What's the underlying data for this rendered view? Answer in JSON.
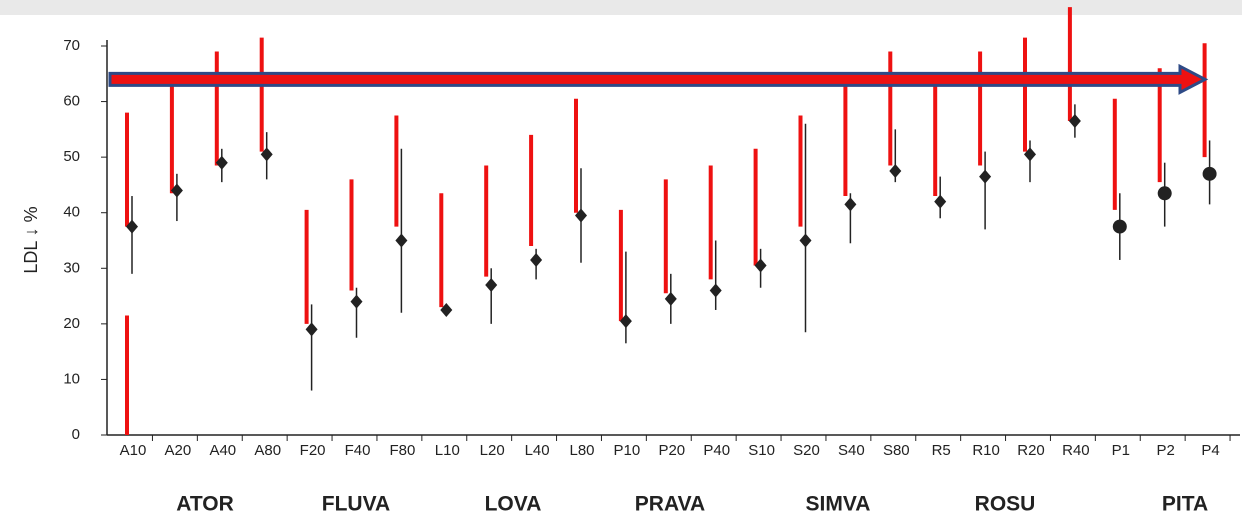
{
  "chart_data": {
    "type": "range",
    "y_label": "LDL ↓ %",
    "categories": [
      "A10",
      "A20",
      "A40",
      "A80",
      "F20",
      "F40",
      "F80",
      "L10",
      "L20",
      "L40",
      "L80",
      "P10",
      "P20",
      "P40",
      "S10",
      "S20",
      "S40",
      "S80",
      "R5",
      "R10",
      "R20",
      "R40",
      "P1",
      "P2",
      "P4"
    ],
    "values": [
      37.5,
      44,
      49,
      50.5,
      19,
      24,
      35,
      22.5,
      27,
      31.5,
      39.5,
      20.5,
      24.5,
      26,
      30.5,
      35,
      41.5,
      47.5,
      42,
      46.5,
      50.5,
      56.5,
      37.5,
      43.5,
      47
    ],
    "low": [
      29,
      38.5,
      45.5,
      46,
      8,
      17.5,
      22,
      22,
      20,
      28,
      31,
      16.5,
      20,
      22.5,
      26.5,
      18.5,
      34.5,
      45.5,
      39,
      37,
      45.5,
      53.5,
      31.5,
      37.5,
      41.5
    ],
    "high": [
      43,
      47,
      51.5,
      54.5,
      23.5,
      26.5,
      51.5,
      23.5,
      30,
      33.5,
      48,
      33,
      29,
      35,
      33.5,
      56,
      43.5,
      55,
      46.5,
      51,
      53,
      59.5,
      43.5,
      49,
      53
    ],
    "markers": [
      "diamond",
      "diamond",
      "diamond",
      "diamond",
      "diamond",
      "diamond",
      "diamond",
      "diamond",
      "diamond",
      "diamond",
      "diamond",
      "diamond",
      "diamond",
      "diamond",
      "diamond",
      "diamond",
      "diamond",
      "diamond",
      "diamond",
      "diamond",
      "diamond",
      "diamond",
      "circle",
      "circle",
      "circle"
    ],
    "color": "#222222",
    "red_color": "#ee1111",
    "red_ranges": [
      [
        [
          0,
          21.5
        ],
        [
          37.5,
          58
        ]
      ],
      [
        [
          43.5,
          63.5
        ]
      ],
      [
        [
          48.5,
          69
        ]
      ],
      [
        [
          51,
          71.5
        ]
      ],
      [
        [
          20,
          40.5
        ]
      ],
      [
        [
          26,
          46
        ]
      ],
      [
        [
          37.5,
          57.5
        ]
      ],
      [
        [
          23,
          43.5
        ]
      ],
      [
        [
          28.5,
          48.5
        ]
      ],
      [
        [
          34,
          54
        ]
      ],
      [
        [
          40,
          60.5
        ]
      ],
      [
        [
          20.5,
          40.5
        ]
      ],
      [
        [
          25.5,
          46
        ]
      ],
      [
        [
          28,
          48.5
        ]
      ],
      [
        [
          30.5,
          51.5
        ]
      ],
      [
        [
          37.5,
          57.5
        ]
      ],
      [
        [
          43,
          64
        ]
      ],
      [
        [
          48.5,
          69
        ]
      ],
      [
        [
          43,
          63.5
        ]
      ],
      [
        [
          48.5,
          69
        ]
      ],
      [
        [
          51,
          71.5
        ]
      ],
      [
        [
          56.5,
          77
        ]
      ],
      [
        [
          40.5,
          60.5
        ]
      ],
      [
        [
          45.5,
          66
        ]
      ],
      [
        [
          50,
          70.5
        ]
      ]
    ],
    "arrow": {
      "value": 64,
      "color": "#ee1111",
      "edge": "#2e4a86"
    },
    "groups": [
      "ATOR",
      "FLUVA",
      "LOVA",
      "PRAVA",
      "SIMVA",
      "ROSU",
      "PITA"
    ],
    "ylim": [
      0,
      70
    ],
    "yticks": [
      0,
      10,
      20,
      30,
      40,
      50,
      60,
      70
    ]
  }
}
